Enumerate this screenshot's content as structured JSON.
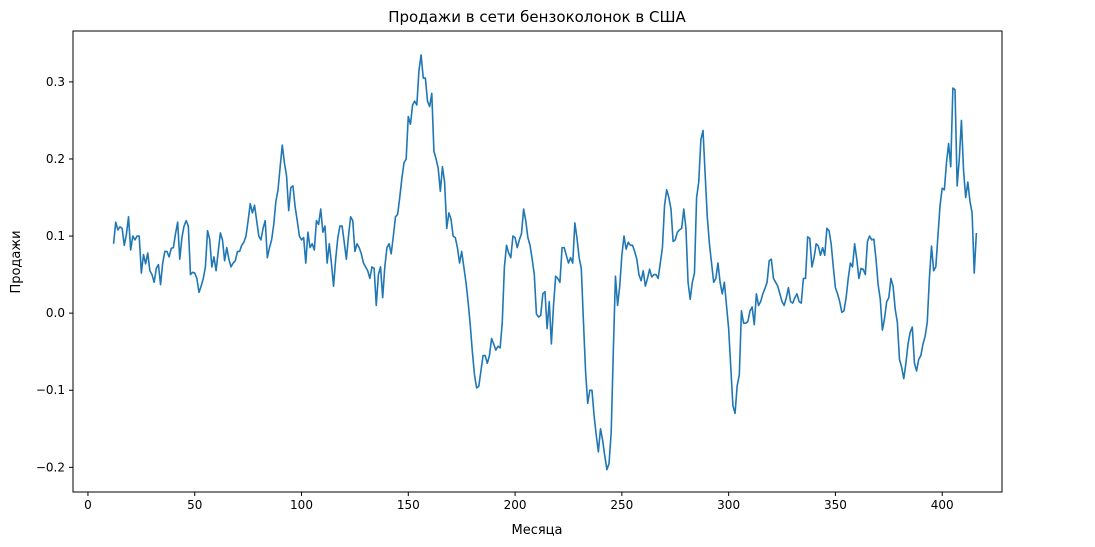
{
  "chart_data": {
    "type": "line",
    "title": "Продажи в сети бензоколонок в США",
    "xlabel": "Месяца",
    "ylabel": "Продажи",
    "xlim": [
      -7,
      428
    ],
    "ylim": [
      -0.232,
      0.366
    ],
    "x_ticks": [
      0,
      50,
      100,
      150,
      200,
      250,
      300,
      350,
      400
    ],
    "y_ticks": [
      -0.2,
      -0.1,
      0.0,
      0.1,
      0.2,
      0.3
    ],
    "y_tick_labels": [
      "−0.2",
      "−0.1",
      "0.0",
      "0.1",
      "0.2",
      "0.3"
    ],
    "grid": false,
    "series": [
      {
        "color": "#1f77b4",
        "x_start": 12,
        "x_step": 1,
        "values": [
          0.09,
          0.118,
          0.108,
          0.112,
          0.11,
          0.088,
          0.102,
          0.125,
          0.082,
          0.1,
          0.095,
          0.1,
          0.1,
          0.052,
          0.076,
          0.064,
          0.078,
          0.055,
          0.05,
          0.04,
          0.058,
          0.063,
          0.037,
          0.065,
          0.08,
          0.08,
          0.073,
          0.084,
          0.085,
          0.103,
          0.118,
          0.07,
          0.098,
          0.113,
          0.12,
          0.113,
          0.05,
          0.053,
          0.052,
          0.045,
          0.027,
          0.035,
          0.045,
          0.06,
          0.107,
          0.096,
          0.06,
          0.073,
          0.055,
          0.08,
          0.104,
          0.095,
          0.068,
          0.085,
          0.07,
          0.06,
          0.065,
          0.068,
          0.08,
          0.08,
          0.088,
          0.092,
          0.1,
          0.12,
          0.142,
          0.13,
          0.14,
          0.12,
          0.1,
          0.095,
          0.11,
          0.12,
          0.072,
          0.085,
          0.095,
          0.115,
          0.145,
          0.16,
          0.19,
          0.218,
          0.195,
          0.178,
          0.133,
          0.163,
          0.165,
          0.138,
          0.12,
          0.1,
          0.095,
          0.098,
          0.065,
          0.105,
          0.085,
          0.09,
          0.082,
          0.12,
          0.115,
          0.135,
          0.105,
          0.113,
          0.065,
          0.09,
          0.065,
          0.035,
          0.07,
          0.098,
          0.113,
          0.113,
          0.092,
          0.07,
          0.1,
          0.125,
          0.12,
          0.08,
          0.09,
          0.085,
          0.077,
          0.065,
          0.06,
          0.055,
          0.045,
          0.06,
          0.058,
          0.01,
          0.05,
          0.06,
          0.02,
          0.06,
          0.085,
          0.09,
          0.077,
          0.1,
          0.125,
          0.128,
          0.15,
          0.175,
          0.195,
          0.2,
          0.255,
          0.245,
          0.27,
          0.275,
          0.27,
          0.315,
          0.335,
          0.305,
          0.305,
          0.275,
          0.268,
          0.285,
          0.21,
          0.2,
          0.188,
          0.158,
          0.19,
          0.17,
          0.11,
          0.13,
          0.122,
          0.1,
          0.098,
          0.085,
          0.065,
          0.08,
          0.06,
          0.04,
          0.015,
          -0.015,
          -0.05,
          -0.08,
          -0.097,
          -0.095,
          -0.075,
          -0.055,
          -0.055,
          -0.065,
          -0.055,
          -0.033,
          -0.04,
          -0.048,
          -0.043,
          -0.045,
          -0.012,
          0.06,
          0.088,
          0.078,
          0.072,
          0.1,
          0.098,
          0.085,
          0.095,
          0.103,
          0.135,
          0.12,
          0.098,
          0.088,
          0.07,
          0.05,
          -0.001,
          -0.005,
          -0.003,
          0.025,
          0.028,
          -0.02,
          0.015,
          -0.04,
          0.01,
          0.048,
          0.045,
          0.04,
          0.085,
          0.085,
          0.075,
          0.065,
          0.072,
          0.065,
          0.117,
          0.097,
          0.072,
          0.058,
          -0.01,
          -0.075,
          -0.117,
          -0.1,
          -0.1,
          -0.133,
          -0.158,
          -0.18,
          -0.15,
          -0.165,
          -0.185,
          -0.203,
          -0.195,
          -0.155,
          -0.05,
          0.048,
          0.01,
          0.035,
          0.075,
          0.1,
          0.083,
          0.092,
          0.088,
          0.088,
          0.08,
          0.07,
          0.05,
          0.042,
          0.055,
          0.035,
          0.045,
          0.057,
          0.047,
          0.05,
          0.05,
          0.045,
          0.065,
          0.085,
          0.14,
          0.16,
          0.15,
          0.135,
          0.093,
          0.095,
          0.105,
          0.108,
          0.11,
          0.135,
          0.11,
          0.04,
          0.018,
          0.04,
          0.052,
          0.15,
          0.17,
          0.225,
          0.237,
          0.18,
          0.125,
          0.09,
          0.065,
          0.04,
          0.045,
          0.065,
          0.04,
          0.025,
          0.04,
          0.01,
          -0.02,
          -0.07,
          -0.12,
          -0.13,
          -0.094,
          -0.08,
          0.003,
          -0.013,
          -0.013,
          -0.011,
          0.003,
          0.008,
          -0.015,
          0.025,
          0.01,
          0.015,
          0.025,
          0.032,
          0.04,
          0.068,
          0.07,
          0.045,
          0.04,
          0.035,
          0.025,
          0.015,
          0.01,
          0.02,
          0.033,
          0.015,
          0.013,
          0.02,
          0.025,
          0.015,
          0.013,
          0.045,
          0.045,
          0.099,
          0.097,
          0.06,
          0.072,
          0.09,
          0.087,
          0.075,
          0.085,
          0.075,
          0.11,
          0.107,
          0.09,
          0.06,
          0.033,
          0.025,
          0.015,
          0.001,
          0.003,
          0.02,
          0.045,
          0.065,
          0.06,
          0.09,
          0.07,
          0.045,
          0.058,
          0.057,
          0.05,
          0.093,
          0.1,
          0.095,
          0.096,
          0.07,
          0.037,
          0.018,
          -0.022,
          -0.007,
          0.015,
          0.02,
          0.045,
          0.035,
          0.005,
          -0.012,
          -0.06,
          -0.07,
          -0.085,
          -0.065,
          -0.04,
          -0.025,
          -0.018,
          -0.065,
          -0.075,
          -0.06,
          -0.055,
          -0.04,
          -0.03,
          -0.012,
          0.045,
          0.087,
          0.055,
          0.06,
          0.1,
          0.14,
          0.162,
          0.16,
          0.195,
          0.22,
          0.19,
          0.292,
          0.29,
          0.165,
          0.2,
          0.25,
          0.185,
          0.15,
          0.17,
          0.145,
          0.13,
          0.052,
          0.104
        ]
      }
    ]
  }
}
